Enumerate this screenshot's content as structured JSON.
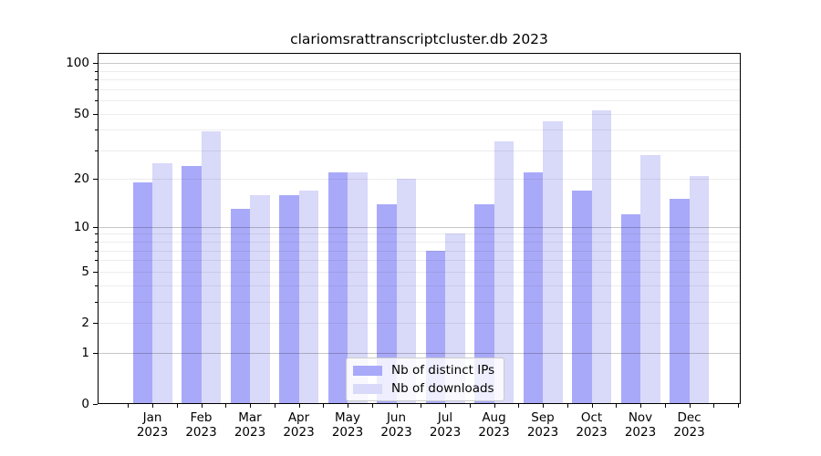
{
  "chart": {
    "title": "clariomsrattranscriptcluster.db 2023"
  },
  "chart_data": {
    "type": "bar",
    "title": "clariomsrattranscriptcluster.db 2023",
    "categories": [
      "Jan",
      "Feb",
      "Mar",
      "Apr",
      "May",
      "Jun",
      "Jul",
      "Aug",
      "Sep",
      "Oct",
      "Nov",
      "Dec"
    ],
    "category_year": "2023",
    "series": [
      {
        "name": "Nb of distinct IPs",
        "color": "#a9a9f9",
        "values": [
          19,
          24,
          13,
          16,
          22,
          14,
          7,
          14,
          22,
          17,
          12,
          15
        ]
      },
      {
        "name": "Nb of downloads",
        "color": "#d9d9f9",
        "values": [
          25,
          39,
          16,
          17,
          22,
          20,
          9,
          34,
          45,
          52,
          28,
          21
        ]
      }
    ],
    "y_scale": "log1p",
    "ylim": [
      0,
      100
    ],
    "y_ticks": [
      0,
      1,
      2,
      5,
      10,
      20,
      50,
      100
    ],
    "y_major_gridlines": [
      1,
      10,
      100
    ],
    "y_minor_gridlines": [
      2,
      3,
      4,
      5,
      6,
      7,
      8,
      9,
      20,
      30,
      40,
      50,
      60,
      70,
      80,
      90
    ],
    "grid": true,
    "legend_position": "bottom-center"
  },
  "legend": {
    "items": [
      "Nb of distinct IPs",
      "Nb of downloads"
    ]
  },
  "colors": {
    "bar_distinct_ips": "#a9a9f9",
    "bar_downloads": "#d9d9f9",
    "axis": "#000000",
    "grid_major": "#c6c6c6",
    "grid_minor": "#eeeeee",
    "legend_border": "#cccccc",
    "background": "#ffffff"
  }
}
